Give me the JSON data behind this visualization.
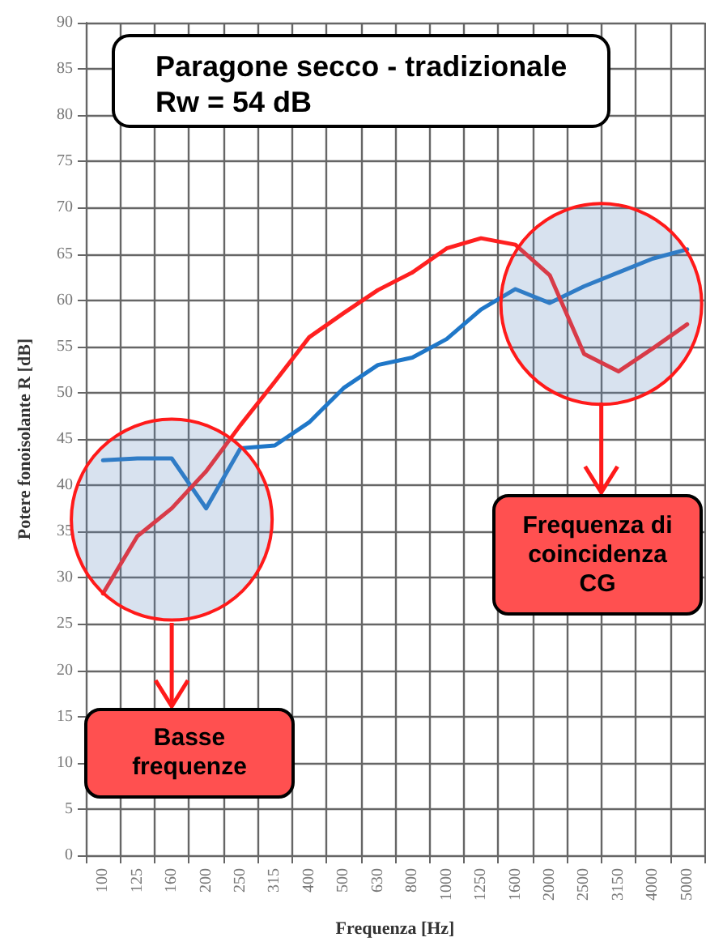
{
  "chart_data": {
    "type": "line",
    "title": "Paragone secco - tradizionale",
    "subtitle": "Rw = 54 dB",
    "xlabel": "Frequenza [Hz]",
    "ylabel": "Potere fonoisolante R [dB]",
    "categories": [
      "100",
      "125",
      "160",
      "200",
      "250",
      "315",
      "400",
      "500",
      "630",
      "800",
      "1000",
      "1250",
      "1600",
      "2000",
      "2500",
      "3150",
      "4000",
      "5000"
    ],
    "series": [
      {
        "color": "#1f77c8",
        "values": [
          42.7,
          42.9,
          42.9,
          37.5,
          44,
          44.3,
          46.8,
          50.5,
          53,
          53.8,
          55.8,
          59,
          61.2,
          59.7,
          61.5,
          63,
          64.5,
          65.5
        ]
      },
      {
        "color": "#ff2020",
        "values": [
          28.3,
          34.5,
          37.5,
          41.5,
          46.5,
          51.2,
          56,
          58.6,
          61.1,
          63,
          65.6,
          66.7,
          66,
          62.7,
          54.2,
          52.3,
          54.8,
          57.4
        ]
      }
    ],
    "ylim": [
      0,
      90
    ],
    "yticks": [
      0,
      5,
      10,
      15,
      20,
      25,
      30,
      35,
      40,
      45,
      50,
      55,
      60,
      65,
      70,
      75,
      80,
      85,
      90
    ],
    "grid": true,
    "marker": "none",
    "line_style": "solid",
    "annotations": [
      "Basse frequenze",
      "Frequenza di coincidenza CG"
    ]
  }
}
